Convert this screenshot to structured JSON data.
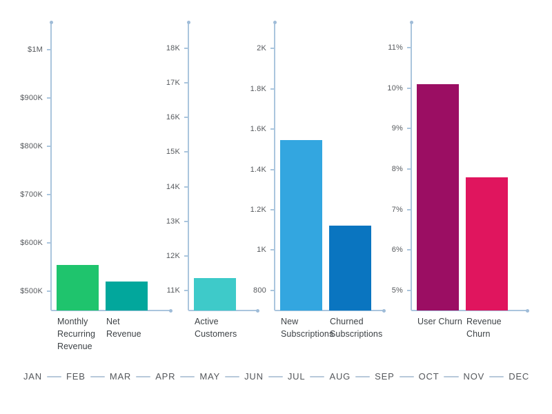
{
  "theme": {
    "background": "#ffffff",
    "axis_color": "#aac5dd",
    "axis_dot_color": "#9fbcd8",
    "tick_text_color": "#55585c",
    "category_text_color": "#3c4145",
    "month_text_color": "#54575b",
    "month_line_color": "#b7c9da",
    "selector_triangle_color": "#7fa5c6"
  },
  "chart_data": [
    {
      "type": "bar",
      "categories": [
        "Monthly\nRecurring\nRevenue",
        "Net\nRevenue"
      ],
      "values": [
        555000,
        520000
      ],
      "bar_colors": [
        "#1fc46d",
        "#02a79c"
      ],
      "ylim": [
        460000,
        1055000
      ],
      "grid": false,
      "legend": false,
      "yticks": [
        {
          "value": 500000,
          "label": "$500K"
        },
        {
          "value": 600000,
          "label": "$600K"
        },
        {
          "value": 700000,
          "label": "$700K"
        },
        {
          "value": 800000,
          "label": "$800K"
        },
        {
          "value": 900000,
          "label": "$900K"
        },
        {
          "value": 1000000,
          "label": "$1M"
        }
      ]
    },
    {
      "type": "bar",
      "categories": [
        "Active\nCustomers"
      ],
      "values": [
        11350
      ],
      "bar_colors": [
        "#3ecac9"
      ],
      "ylim": [
        10420,
        18720
      ],
      "grid": false,
      "legend": false,
      "yticks": [
        {
          "value": 11000,
          "label": "11K"
        },
        {
          "value": 12000,
          "label": "12K"
        },
        {
          "value": 13000,
          "label": "13K"
        },
        {
          "value": 14000,
          "label": "14K"
        },
        {
          "value": 15000,
          "label": "15K"
        },
        {
          "value": 16000,
          "label": "16K"
        },
        {
          "value": 17000,
          "label": "17K"
        },
        {
          "value": 18000,
          "label": "18K"
        }
      ]
    },
    {
      "type": "bar",
      "categories": [
        "New\nSubscriptions",
        "Churned\nSubscriptions"
      ],
      "values": [
        1545,
        1120
      ],
      "bar_colors": [
        "#33a6e0",
        "#0a75c0"
      ],
      "ylim": [
        700,
        2125
      ],
      "grid": false,
      "legend": false,
      "yticks": [
        {
          "value": 800,
          "label": "800"
        },
        {
          "value": 1000,
          "label": "1K"
        },
        {
          "value": 1200,
          "label": "1.2K"
        },
        {
          "value": 1400,
          "label": "1.4K"
        },
        {
          "value": 1600,
          "label": "1.6K"
        },
        {
          "value": 1800,
          "label": "1.8K"
        },
        {
          "value": 2000,
          "label": "2K"
        }
      ]
    },
    {
      "type": "bar",
      "categories": [
        "User Churn",
        "Revenue\nChurn"
      ],
      "values": [
        10.1,
        7.8
      ],
      "bar_colors": [
        "#9b0e63",
        "#e0155e"
      ],
      "ylim": [
        4.5,
        11.6
      ],
      "grid": false,
      "legend": false,
      "yticks": [
        {
          "value": 5,
          "label": "5%"
        },
        {
          "value": 6,
          "label": "6%"
        },
        {
          "value": 7,
          "label": "7%"
        },
        {
          "value": 8,
          "label": "8%"
        },
        {
          "value": 9,
          "label": "9%"
        },
        {
          "value": 10,
          "label": "10%"
        },
        {
          "value": 11,
          "label": "11%"
        }
      ]
    }
  ],
  "timeline": {
    "months": [
      "JAN",
      "FEB",
      "MAR",
      "APR",
      "MAY",
      "JUN",
      "JUL",
      "AUG",
      "SEP",
      "OCT",
      "NOV",
      "DEC"
    ],
    "selected_month": "JAN"
  }
}
